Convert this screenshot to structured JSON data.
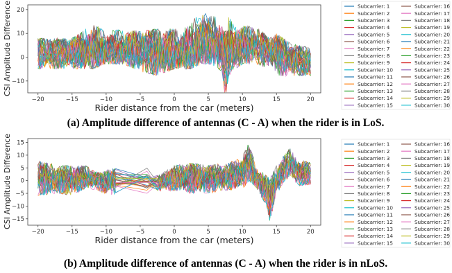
{
  "chart_data": [
    {
      "type": "line",
      "caption": "(a) Amplitude difference of antennas (C - A) when the rider is in LoS.",
      "xlabel": "Rider distance from the car (meters)",
      "ylabel": "CSI Amplitude Difference",
      "xlim": [
        -21.5,
        21.5
      ],
      "ylim": [
        -15,
        22
      ],
      "xticks": [
        -20,
        -15,
        -10,
        -5,
        0,
        5,
        10,
        15,
        20
      ],
      "yticks": [
        -10,
        0,
        10,
        20
      ],
      "grid": false,
      "legend_position": "right, outside plot",
      "x_range": [
        -20,
        20
      ],
      "envelope": {
        "x": [
          -20,
          -15,
          -12,
          -10,
          -7.5,
          -5,
          -2.5,
          0,
          2.5,
          4,
          5,
          6,
          7,
          7.5,
          8,
          9,
          10,
          12,
          14,
          15,
          17,
          20
        ],
        "upper": [
          8,
          8,
          14,
          11,
          12,
          11,
          12,
          12,
          14,
          22,
          18,
          17,
          15,
          10,
          17,
          13,
          13,
          13,
          8,
          10,
          6,
          4
        ],
        "lower": [
          -5,
          -5,
          -5,
          -3,
          -3,
          -6,
          -8,
          -5,
          -5,
          -3,
          -3,
          -4,
          -6,
          -17,
          -8,
          -5,
          -3,
          -3,
          -5,
          -8,
          -8,
          -8
        ],
        "center": [
          2,
          2,
          3,
          3,
          3,
          3,
          2,
          2,
          3,
          6,
          6,
          6,
          3,
          -3,
          3,
          4,
          5,
          5,
          3,
          2,
          -1,
          -2
        ]
      },
      "series": [
        {
          "name": "Subcarrier: 1",
          "color": "#1f77b4"
        },
        {
          "name": "Subcarrier: 2",
          "color": "#ff7f0e"
        },
        {
          "name": "Subcarrier: 3",
          "color": "#2ca02c"
        },
        {
          "name": "Subcarrier: 4",
          "color": "#d62728"
        },
        {
          "name": "Subcarrier: 5",
          "color": "#9467bd"
        },
        {
          "name": "Subcarrier: 6",
          "color": "#8c564b"
        },
        {
          "name": "Subcarrier: 7",
          "color": "#e377c2"
        },
        {
          "name": "Subcarrier: 8",
          "color": "#7f7f7f"
        },
        {
          "name": "Subcarrier: 9",
          "color": "#bcbd22"
        },
        {
          "name": "Subcarrier: 10",
          "color": "#17becf"
        },
        {
          "name": "Subcarrier: 11",
          "color": "#1f77b4"
        },
        {
          "name": "Subcarrier: 12",
          "color": "#ff7f0e"
        },
        {
          "name": "Subcarrier: 13",
          "color": "#2ca02c"
        },
        {
          "name": "Subcarrier: 14",
          "color": "#d62728"
        },
        {
          "name": "Subcarrier: 15",
          "color": "#9467bd"
        },
        {
          "name": "Subcarrier: 16",
          "color": "#8c564b"
        },
        {
          "name": "Subcarrier: 17",
          "color": "#e377c2"
        },
        {
          "name": "Subcarrier: 18",
          "color": "#7f7f7f"
        },
        {
          "name": "Subcarrier: 19",
          "color": "#bcbd22"
        },
        {
          "name": "Subcarrier: 20",
          "color": "#17becf"
        },
        {
          "name": "Subcarrier: 21",
          "color": "#1f77b4"
        },
        {
          "name": "Subcarrier: 22",
          "color": "#ff7f0e"
        },
        {
          "name": "Subcarrier: 23",
          "color": "#2ca02c"
        },
        {
          "name": "Subcarrier: 24",
          "color": "#d62728"
        },
        {
          "name": "Subcarrier: 25",
          "color": "#9467bd"
        },
        {
          "name": "Subcarrier: 26",
          "color": "#8c564b"
        },
        {
          "name": "Subcarrier: 27",
          "color": "#e377c2"
        },
        {
          "name": "Subcarrier: 28",
          "color": "#7f7f7f"
        },
        {
          "name": "Subcarrier: 29",
          "color": "#bcbd22"
        },
        {
          "name": "Subcarrier: 30",
          "color": "#17becf"
        }
      ]
    },
    {
      "type": "line",
      "caption": "(b) Amplitude difference of antennas (C - A) when the rider is in nLoS.",
      "xlabel": "Rider distance from the car (meters)",
      "ylabel": "CSI Amplitude Difference",
      "xlim": [
        -21.5,
        21.5
      ],
      "ylim": [
        -17.5,
        16.5
      ],
      "xticks": [
        -20,
        -15,
        -10,
        -5,
        0,
        5,
        10,
        15,
        20
      ],
      "yticks": [
        -15,
        -10,
        -5,
        0,
        5,
        10,
        15
      ],
      "grid": false,
      "legend_position": "right, outside plot",
      "x_range": [
        -20,
        20
      ],
      "envelope": {
        "x": [
          -20,
          -17,
          -15,
          -13,
          -11,
          -10,
          -9,
          -8.5,
          -5,
          -3,
          -2.5,
          0,
          2.5,
          5,
          7.5,
          10,
          10.5,
          11,
          12,
          13.5,
          14,
          15,
          16,
          17,
          18,
          20
        ],
        "upper": [
          8,
          6,
          6,
          6,
          3,
          4,
          5,
          5,
          5,
          5,
          2,
          6,
          7,
          6,
          7,
          9,
          15,
          14,
          6,
          2,
          1,
          6,
          10,
          13,
          9,
          7
        ],
        "lower": [
          -6,
          -5,
          -6,
          -3,
          -4,
          -6,
          -6,
          -5,
          -5,
          -5,
          -4,
          -4,
          -5,
          -5,
          -4,
          -3,
          -2,
          0,
          -3,
          -10,
          -16,
          -6,
          -1,
          2,
          -2,
          -2
        ],
        "center": [
          1,
          0,
          0,
          1,
          0,
          -1,
          0,
          0,
          0,
          0,
          -1,
          1,
          1,
          1,
          1,
          3,
          6,
          6,
          1,
          -4,
          -8,
          0,
          4,
          7,
          3,
          2
        ]
      },
      "series": [
        {
          "name": "Subcarrier: 1",
          "color": "#1f77b4"
        },
        {
          "name": "Subcarrier: 2",
          "color": "#ff7f0e"
        },
        {
          "name": "Subcarrier: 3",
          "color": "#2ca02c"
        },
        {
          "name": "Subcarrier: 4",
          "color": "#d62728"
        },
        {
          "name": "Subcarrier: 5",
          "color": "#9467bd"
        },
        {
          "name": "Subcarrier: 6",
          "color": "#8c564b"
        },
        {
          "name": "Subcarrier: 7",
          "color": "#e377c2"
        },
        {
          "name": "Subcarrier: 8",
          "color": "#7f7f7f"
        },
        {
          "name": "Subcarrier: 9",
          "color": "#bcbd22"
        },
        {
          "name": "Subcarrier: 10",
          "color": "#17becf"
        },
        {
          "name": "Subcarrier: 11",
          "color": "#1f77b4"
        },
        {
          "name": "Subcarrier: 12",
          "color": "#ff7f0e"
        },
        {
          "name": "Subcarrier: 13",
          "color": "#2ca02c"
        },
        {
          "name": "Subcarrier: 14",
          "color": "#d62728"
        },
        {
          "name": "Subcarrier: 15",
          "color": "#9467bd"
        },
        {
          "name": "Subcarrier: 16",
          "color": "#8c564b"
        },
        {
          "name": "Subcarrier: 17",
          "color": "#e377c2"
        },
        {
          "name": "Subcarrier: 18",
          "color": "#7f7f7f"
        },
        {
          "name": "Subcarrier: 19",
          "color": "#bcbd22"
        },
        {
          "name": "Subcarrier: 20",
          "color": "#17becf"
        },
        {
          "name": "Subcarrier: 21",
          "color": "#1f77b4"
        },
        {
          "name": "Subcarrier: 22",
          "color": "#ff7f0e"
        },
        {
          "name": "Subcarrier: 23",
          "color": "#2ca02c"
        },
        {
          "name": "Subcarrier: 24",
          "color": "#d62728"
        },
        {
          "name": "Subcarrier: 25",
          "color": "#9467bd"
        },
        {
          "name": "Subcarrier: 26",
          "color": "#8c564b"
        },
        {
          "name": "Subcarrier: 27",
          "color": "#e377c2"
        },
        {
          "name": "Subcarrier: 28",
          "color": "#7f7f7f"
        },
        {
          "name": "Subcarrier: 29",
          "color": "#bcbd22"
        },
        {
          "name": "Subcarrier: 30",
          "color": "#17becf"
        }
      ]
    }
  ]
}
